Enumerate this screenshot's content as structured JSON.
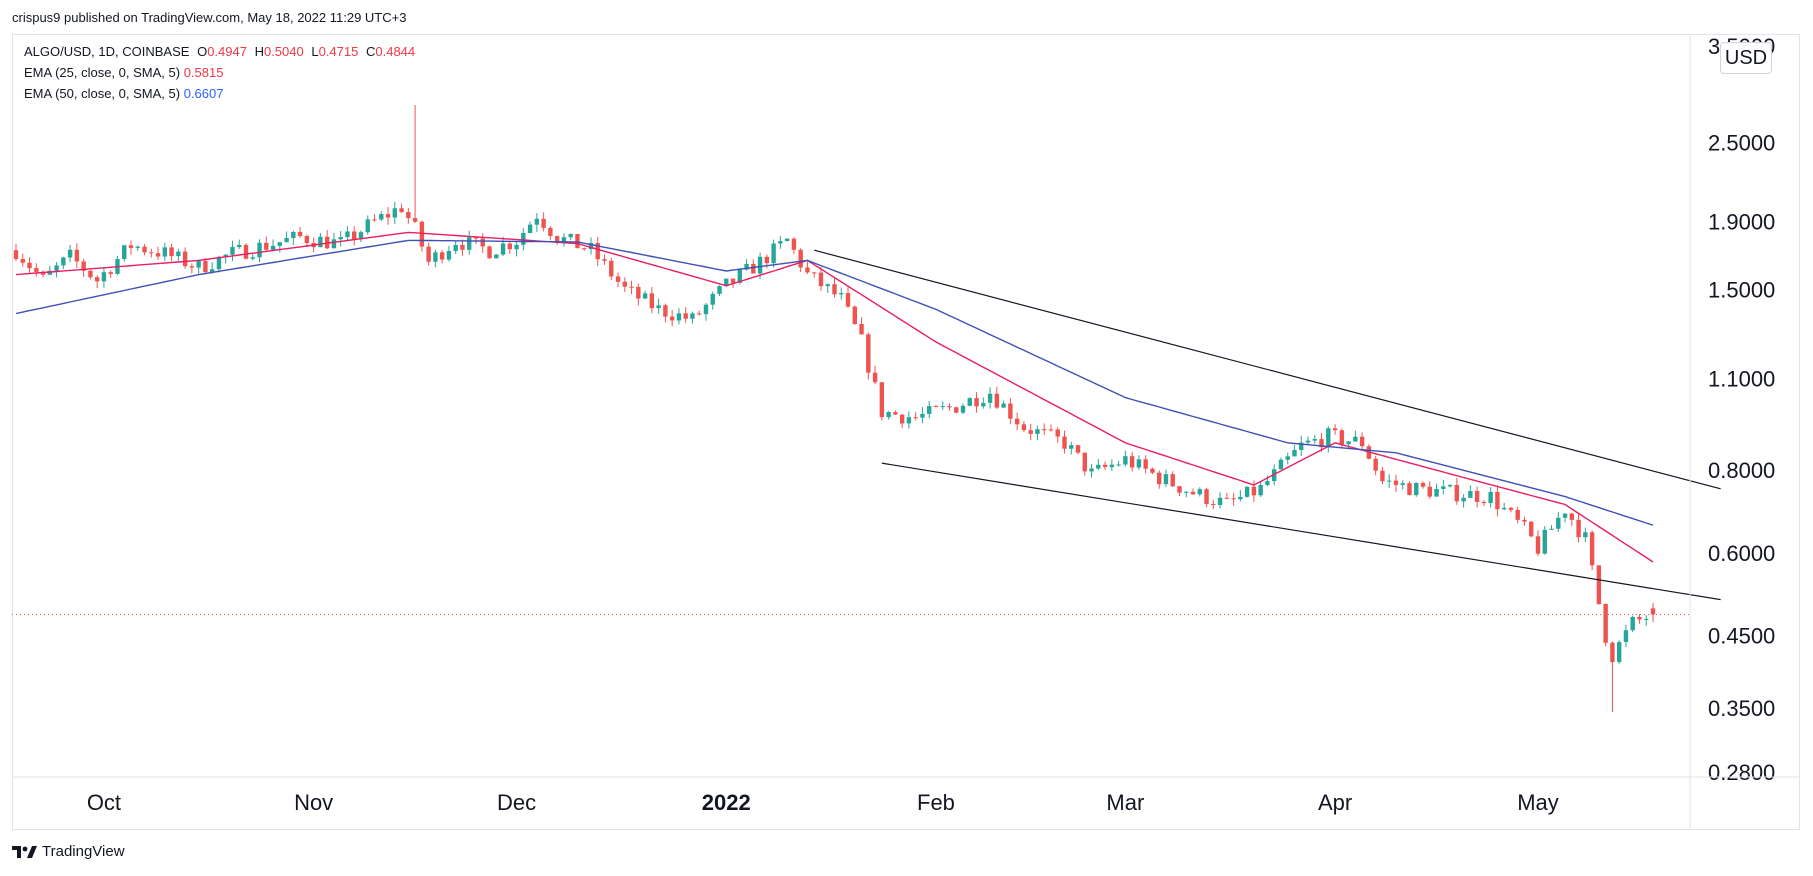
{
  "header": {
    "text": "crispus9 published on TradingView.com, May 18, 2022 11:29 UTC+3"
  },
  "legend": {
    "symbol": "ALGO/USD, 1D, COINBASE",
    "open_label": "O",
    "open": "0.4947",
    "high_label": "H",
    "high": "0.5040",
    "low_label": "L",
    "low": "0.4715",
    "close_label": "C",
    "close": "0.4844",
    "ema25_label": "EMA (25, close, 0, SMA, 5)",
    "ema25_value": "0.5815",
    "ema50_label": "EMA (50, close, 0, SMA, 5)",
    "ema50_value": "0.6607"
  },
  "currency": "USD",
  "footer": {
    "brand": "TradingView"
  },
  "colors": {
    "up": "#26a69a",
    "down": "#ef5350",
    "ema25": "#e91e63",
    "ema50": "#3f51b5",
    "trend": "#131722",
    "last_price": "#ef5350"
  },
  "chart_data": {
    "type": "candlestick",
    "symbol": "ALGO/USD",
    "interval": "1D",
    "exchange": "COINBASE",
    "y_scale": "log",
    "ylim": [
      0.28,
      3.5
    ],
    "y_ticks": [
      "3.5000",
      "2.5000",
      "1.9000",
      "1.5000",
      "1.1000",
      "0.8000",
      "0.6000",
      "0.4500",
      "0.3500",
      "0.2800"
    ],
    "y_tick_values": [
      3.5,
      2.5,
      1.9,
      1.5,
      1.1,
      0.8,
      0.6,
      0.45,
      0.35,
      0.28
    ],
    "x_ticks": [
      {
        "label": "Oct",
        "date": "2021-10-01"
      },
      {
        "label": "Nov",
        "date": "2021-11-01"
      },
      {
        "label": "Dec",
        "date": "2021-12-01"
      },
      {
        "label": "2022",
        "date": "2022-01-01",
        "emphasis": true
      },
      {
        "label": "Feb",
        "date": "2022-02-01"
      },
      {
        "label": "Mar",
        "date": "2022-03-01"
      },
      {
        "label": "Apr",
        "date": "2022-04-01"
      },
      {
        "label": "May",
        "date": "2022-05-01"
      }
    ],
    "date_range": [
      "2021-09-18",
      "2022-05-18"
    ],
    "last_price": 0.4844,
    "price_anchors": [
      [
        "2021-09-18",
        1.72
      ],
      [
        "2021-09-22",
        1.55
      ],
      [
        "2021-09-26",
        1.68
      ],
      [
        "2021-09-30",
        1.55
      ],
      [
        "2021-10-05",
        1.75
      ],
      [
        "2021-10-10",
        1.7
      ],
      [
        "2021-10-15",
        1.62
      ],
      [
        "2021-10-20",
        1.7
      ],
      [
        "2021-10-25",
        1.75
      ],
      [
        "2021-10-30",
        1.8
      ],
      [
        "2021-11-05",
        1.76
      ],
      [
        "2021-11-10",
        1.9
      ],
      [
        "2021-11-14",
        2.0
      ],
      [
        "2021-11-16",
        1.85
      ],
      [
        "2021-11-18",
        1.65
      ],
      [
        "2021-11-22",
        1.78
      ],
      [
        "2021-11-27",
        1.72
      ],
      [
        "2021-12-01",
        1.78
      ],
      [
        "2021-12-04",
        1.95
      ],
      [
        "2021-12-07",
        1.8
      ],
      [
        "2021-12-12",
        1.72
      ],
      [
        "2021-12-17",
        1.5
      ],
      [
        "2021-12-22",
        1.4
      ],
      [
        "2021-12-27",
        1.35
      ],
      [
        "2022-01-01",
        1.52
      ],
      [
        "2022-01-06",
        1.65
      ],
      [
        "2022-01-10",
        1.78
      ],
      [
        "2022-01-13",
        1.58
      ],
      [
        "2022-01-18",
        1.45
      ],
      [
        "2022-01-21",
        1.25
      ],
      [
        "2022-01-24",
        0.98
      ],
      [
        "2022-01-29",
        0.96
      ],
      [
        "2022-02-04",
        1.0
      ],
      [
        "2022-02-09",
        1.05
      ],
      [
        "2022-02-14",
        0.93
      ],
      [
        "2022-02-20",
        0.88
      ],
      [
        "2022-02-24",
        0.79
      ],
      [
        "2022-03-01",
        0.83
      ],
      [
        "2022-03-06",
        0.78
      ],
      [
        "2022-03-11",
        0.74
      ],
      [
        "2022-03-16",
        0.71
      ],
      [
        "2022-03-21",
        0.75
      ],
      [
        "2022-03-27",
        0.87
      ],
      [
        "2022-03-31",
        0.9
      ],
      [
        "2022-04-05",
        0.88
      ],
      [
        "2022-04-08",
        0.77
      ],
      [
        "2022-04-13",
        0.75
      ],
      [
        "2022-04-18",
        0.74
      ],
      [
        "2022-04-24",
        0.73
      ],
      [
        "2022-04-29",
        0.65
      ],
      [
        "2022-05-01",
        0.61
      ],
      [
        "2022-05-05",
        0.7
      ],
      [
        "2022-05-08",
        0.63
      ],
      [
        "2022-05-11",
        0.45
      ],
      [
        "2022-05-12",
        0.42
      ],
      [
        "2022-05-15",
        0.47
      ],
      [
        "2022-05-18",
        0.4844
      ]
    ],
    "wick_spikes": [
      {
        "date": "2021-11-16",
        "high": 2.85
      },
      {
        "date": "2022-05-12",
        "low": 0.345
      }
    ],
    "ema25_anchors": [
      [
        "2021-09-18",
        1.58
      ],
      [
        "2021-10-15",
        1.66
      ],
      [
        "2021-11-15",
        1.83
      ],
      [
        "2021-12-10",
        1.76
      ],
      [
        "2022-01-01",
        1.52
      ],
      [
        "2022-01-13",
        1.66
      ],
      [
        "2022-02-01",
        1.25
      ],
      [
        "2022-03-01",
        0.88
      ],
      [
        "2022-03-20",
        0.76
      ],
      [
        "2022-04-01",
        0.88
      ],
      [
        "2022-04-20",
        0.78
      ],
      [
        "2022-05-05",
        0.71
      ],
      [
        "2022-05-18",
        0.5815
      ]
    ],
    "ema50_anchors": [
      [
        "2021-09-18",
        1.38
      ],
      [
        "2021-10-15",
        1.58
      ],
      [
        "2021-11-15",
        1.78
      ],
      [
        "2021-12-10",
        1.77
      ],
      [
        "2022-01-01",
        1.6
      ],
      [
        "2022-01-13",
        1.66
      ],
      [
        "2022-02-01",
        1.4
      ],
      [
        "2022-03-01",
        1.03
      ],
      [
        "2022-03-25",
        0.88
      ],
      [
        "2022-04-10",
        0.85
      ],
      [
        "2022-05-05",
        0.73
      ],
      [
        "2022-05-18",
        0.6607
      ]
    ],
    "trendlines": [
      {
        "name": "upper",
        "points": [
          [
            "2022-01-14",
            1.72
          ],
          [
            "2022-05-28",
            0.75
          ]
        ]
      },
      {
        "name": "lower",
        "points": [
          [
            "2022-01-24",
            0.82
          ],
          [
            "2022-05-28",
            0.51
          ]
        ]
      }
    ]
  }
}
